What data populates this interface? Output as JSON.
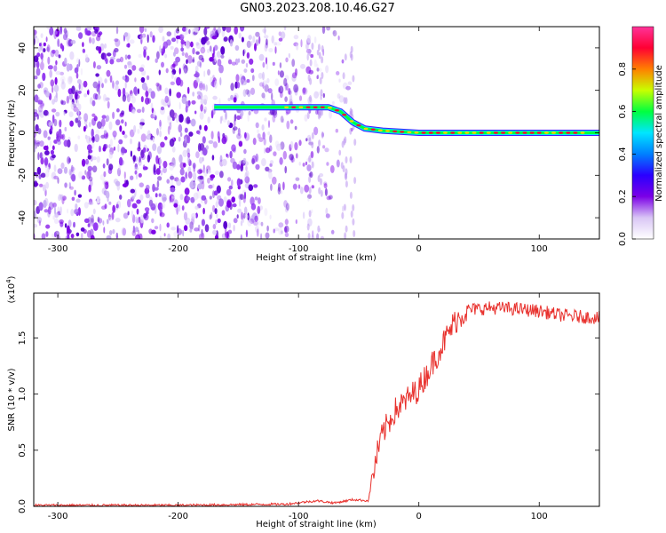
{
  "title": "GN03.2023.208.10.46.G27",
  "chart_data": [
    {
      "type": "heatmap",
      "xlabel": "Height of straight line (km)",
      "ylabel": "Frequency (Hz)",
      "xlim": [
        -320,
        150
      ],
      "ylim": [
        -50,
        50
      ],
      "xticks": [
        -300,
        -200,
        -100,
        0,
        100
      ],
      "yticks": [
        40,
        20,
        0,
        -20,
        -40
      ],
      "colorbar": {
        "label": "Normalized spectral amplitude",
        "range": [
          0.0,
          1.0
        ],
        "ticks": [
          "0.0",
          "0.2",
          "0.4",
          "0.6",
          "0.8"
        ],
        "colors": [
          "#ffffff",
          "#d9c6f5",
          "#7b00e6",
          "#2a00ff",
          "#0080ff",
          "#00e6ff",
          "#00ff40",
          "#c8ff00",
          "#ff8000",
          "#ff0033",
          "#ff3399"
        ]
      },
      "trace": {
        "x": [
          -170,
          -110,
          -75,
          -65,
          -55,
          -45,
          -30,
          0,
          150
        ],
        "y": [
          12,
          12,
          12,
          10,
          5,
          2,
          1,
          0,
          0
        ]
      },
      "noise_region_x": [
        -320,
        -55
      ]
    },
    {
      "type": "line",
      "xlabel": "Height of straight line (km)",
      "ylabel": "SNR (10 * v/v)",
      "scale_label": "(x10",
      "scale_exp": "4",
      "scale_close": ")",
      "xlim": [
        -320,
        150
      ],
      "ylim": [
        0.0,
        1.9
      ],
      "xticks": [
        -300,
        -200,
        -100,
        0,
        100
      ],
      "yticks": [
        "0.0",
        "0.5",
        "1.0",
        "1.5"
      ],
      "color": "#e8302c",
      "x": [
        -320,
        -200,
        -110,
        -85,
        -70,
        -55,
        -42,
        -35,
        -30,
        -20,
        -10,
        0,
        10,
        20,
        30,
        40,
        60,
        80,
        100,
        120,
        150
      ],
      "y": [
        0.01,
        0.01,
        0.02,
        0.05,
        0.03,
        0.06,
        0.05,
        0.45,
        0.65,
        0.85,
        0.95,
        1.05,
        1.25,
        1.45,
        1.65,
        1.75,
        1.77,
        1.76,
        1.74,
        1.7,
        1.68
      ]
    }
  ]
}
